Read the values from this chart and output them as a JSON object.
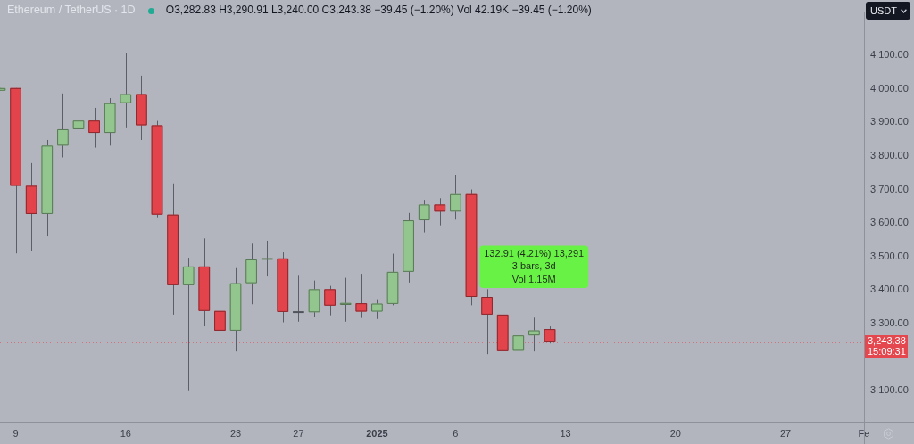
{
  "chart_data": {
    "type": "candlestick",
    "title": "Ethereum / TetherUS · 1D",
    "subtitle": "O3,282.83 H3,290.91 L3,240.00 C3,243.38 −39.45 (−1.20%) Vol 42.19K −39.45 (−1.20%)",
    "ylabel": "USDT",
    "x": [
      "2024-12-08",
      "2024-12-09",
      "2024-12-10",
      "2024-12-11",
      "2024-12-12",
      "2024-12-13",
      "2024-12-14",
      "2024-12-15",
      "2024-12-16",
      "2024-12-17",
      "2024-12-18",
      "2024-12-19",
      "2024-12-20",
      "2024-12-21",
      "2024-12-22",
      "2024-12-23",
      "2024-12-24",
      "2024-12-25",
      "2024-12-26",
      "2024-12-27",
      "2024-12-28",
      "2024-12-29",
      "2024-12-30",
      "2024-12-31",
      "2025-01-01",
      "2025-01-02",
      "2025-01-03",
      "2025-01-04",
      "2025-01-05",
      "2025-01-06",
      "2025-01-07",
      "2025-01-08",
      "2025-01-09",
      "2025-01-10",
      "2025-01-11",
      "2025-01-12"
    ],
    "ohlc": [
      [
        3995,
        4003,
        3995,
        4003
      ],
      [
        4003,
        4003,
        3509,
        3711
      ],
      [
        3711,
        3779,
        3515,
        3627
      ],
      [
        3627,
        3848,
        3560,
        3831
      ],
      [
        3831,
        3987,
        3796,
        3880
      ],
      [
        3880,
        3968,
        3852,
        3906
      ],
      [
        3906,
        3944,
        3825,
        3869
      ],
      [
        3869,
        3973,
        3831,
        3958
      ],
      [
        3958,
        4108,
        3883,
        3985
      ],
      [
        3985,
        4040,
        3848,
        3892
      ],
      [
        3892,
        3905,
        3617,
        3625
      ],
      [
        3625,
        3718,
        3326,
        3414
      ],
      [
        3414,
        3496,
        3100,
        3470
      ],
      [
        3470,
        3554,
        3291,
        3337
      ],
      [
        3337,
        3402,
        3221,
        3278
      ],
      [
        3278,
        3465,
        3216,
        3420
      ],
      [
        3420,
        3538,
        3357,
        3491
      ],
      [
        3491,
        3547,
        3440,
        3494
      ],
      [
        3494,
        3512,
        3303,
        3334
      ],
      [
        3334,
        3442,
        3305,
        3333
      ],
      [
        3333,
        3428,
        3320,
        3402
      ],
      [
        3402,
        3412,
        3324,
        3353
      ],
      [
        3355,
        3436,
        3305,
        3361
      ],
      [
        3360,
        3448,
        3316,
        3335
      ],
      [
        3335,
        3372,
        3313,
        3359
      ],
      [
        3358,
        3508,
        3354,
        3454
      ],
      [
        3454,
        3630,
        3422,
        3608
      ],
      [
        3608,
        3669,
        3572,
        3655
      ],
      [
        3655,
        3674,
        3593,
        3634
      ],
      [
        3634,
        3744,
        3610,
        3686
      ],
      [
        3686,
        3700,
        3354,
        3379
      ],
      [
        3379,
        3402,
        3208,
        3326
      ],
      [
        3326,
        3354,
        3158,
        3217
      ],
      [
        3218,
        3290,
        3195,
        3264
      ],
      [
        3264,
        3317,
        3216,
        3279
      ],
      [
        3282.83,
        3290.91,
        3240.0,
        3243.38
      ]
    ],
    "colors": [
      "#93c58f",
      "#e3444c",
      "#e3444c",
      "#93c58f",
      "#93c58f",
      "#93c58f",
      "#e3444c",
      "#93c58f",
      "#93c58f",
      "#e3444c",
      "#e3444c",
      "#e3444c",
      "#93c58f",
      "#e3444c",
      "#e3444c",
      "#93c58f",
      "#93c58f",
      "#62805f",
      "#e3444c",
      "#50535a",
      "#93c58f",
      "#e3444c",
      "#93c58f",
      "#e3444c",
      "#93c58f",
      "#93c58f",
      "#93c58f",
      "#93c58f",
      "#e3444c",
      "#93c58f",
      "#e3444c",
      "#e3444c",
      "#e3444c",
      "#93c58f",
      "#93c58f",
      "#e3444c"
    ],
    "xlim": [
      "2024-12-08",
      "2025-02-01"
    ],
    "xticks": [
      {
        "value": "2024-12-09",
        "label": "9"
      },
      {
        "value": "2024-12-16",
        "label": "16"
      },
      {
        "value": "2024-12-23",
        "label": "23"
      },
      {
        "value": "2024-12-27",
        "label": "27"
      },
      {
        "value": "2025-01-01",
        "label": "2025"
      },
      {
        "value": "2025-01-06",
        "label": "6"
      },
      {
        "value": "2025-01-13",
        "label": "13"
      },
      {
        "value": "2025-01-20",
        "label": "20"
      },
      {
        "value": "2025-01-27",
        "label": "27"
      },
      {
        "value": "2025-02-01",
        "label": "Fe"
      }
    ],
    "ylim": [
      3006,
      4230
    ],
    "yticks": [
      {
        "value": 3100,
        "label": "3,100.00"
      },
      {
        "value": 3300,
        "label": "3,300.00"
      },
      {
        "value": 3400,
        "label": "3,400.00"
      },
      {
        "value": 3500,
        "label": "3,500.00"
      },
      {
        "value": 3600,
        "label": "3,600.00"
      },
      {
        "value": 3700,
        "label": "3,700.00"
      },
      {
        "value": 3800,
        "label": "3,800.00"
      },
      {
        "value": 3900,
        "label": "3,900.00"
      },
      {
        "value": 4000,
        "label": "4,000.00"
      },
      {
        "value": 4100,
        "label": "4,100.00"
      }
    ],
    "ref_lines": [
      {
        "axis": "y",
        "value": 3243.38,
        "label": "3,243.38\n15:09:31",
        "color": "#e5474f",
        "line_style": "dotted"
      }
    ],
    "annotations": [
      "132.91 (4.21%) 13,291\n3 bars, 3d\nVol 1.15M"
    ]
  }
}
